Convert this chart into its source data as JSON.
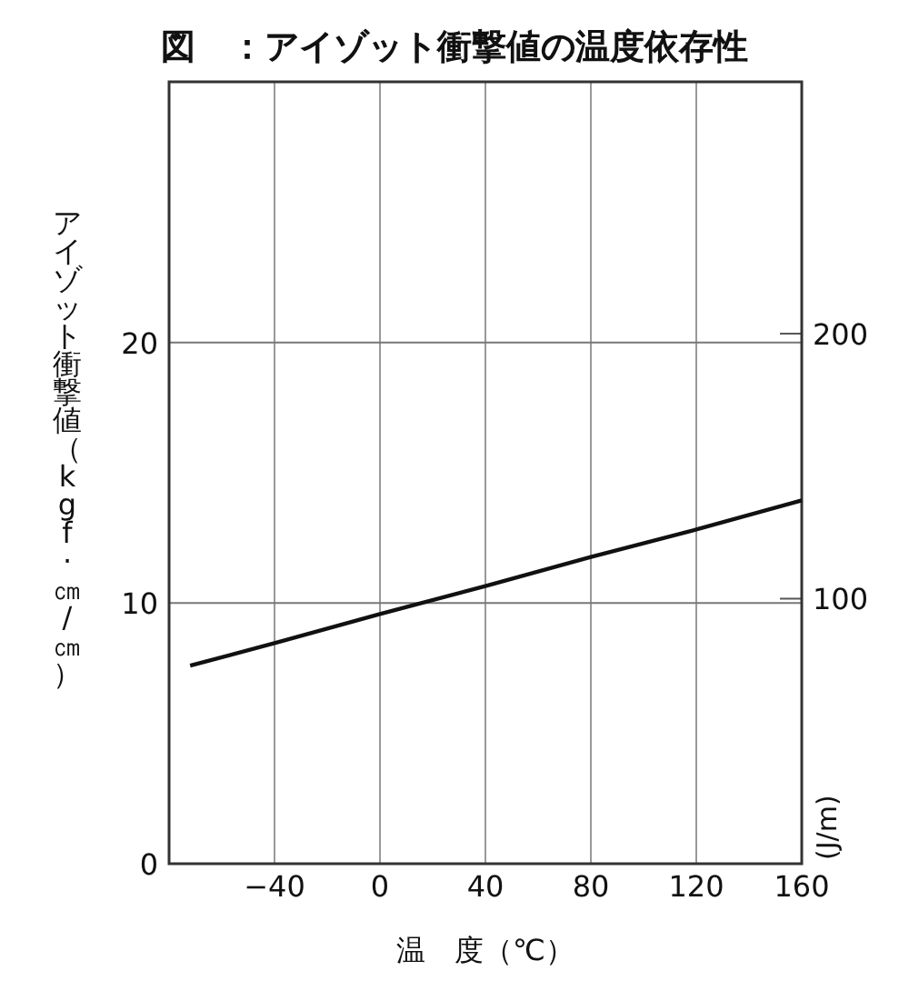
{
  "chart_data": {
    "type": "line",
    "title": "図　：アイゾット衝撃値の温度依存性",
    "xlabel": "温　度（℃）",
    "ylabel": "アイゾット衝撃値（kgf·㎝/㎝）",
    "y2label": "(J/m)",
    "x": [
      -72,
      -40,
      0,
      40,
      80,
      120,
      160
    ],
    "series": [
      {
        "color": "#111111",
        "values": [
          7.6,
          8.46,
          9.58,
          10.65,
          11.77,
          12.82,
          13.94
        ]
      }
    ],
    "xlim": [
      -80,
      160
    ],
    "xticks": [
      {
        "value": -40,
        "label": "−40"
      },
      0,
      40,
      80,
      120,
      160
    ],
    "ylim": [
      0,
      30
    ],
    "yticks": [
      0,
      10,
      20
    ],
    "y2lim": [
      0,
      295
    ],
    "y2ticks": [
      100,
      200
    ],
    "grid": true,
    "marker": "none",
    "line_style": "solid"
  }
}
